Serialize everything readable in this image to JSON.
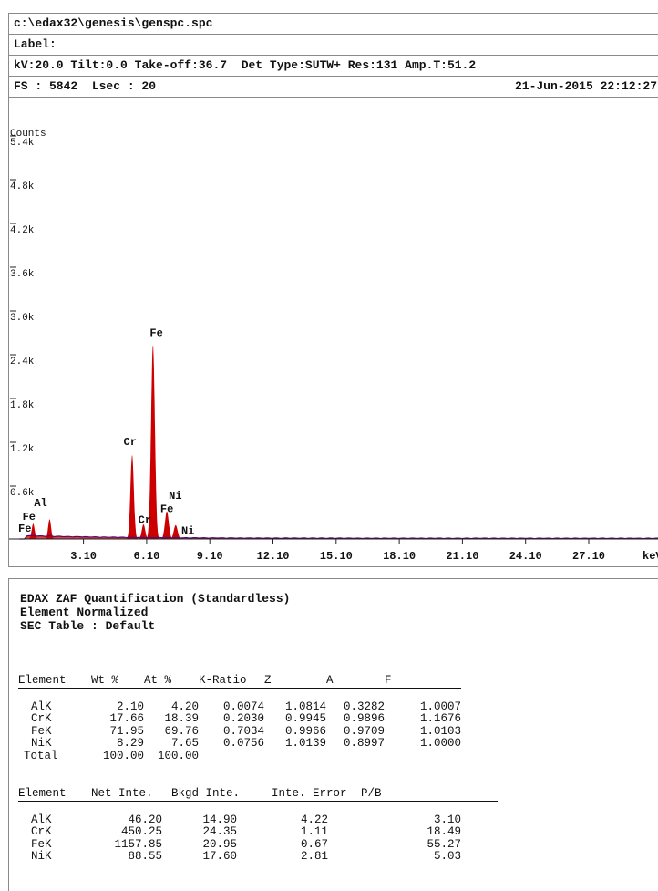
{
  "header": {
    "path": "c:\\edax32\\genesis\\genspc.spc",
    "label": "Label:",
    "params": {
      "kv": "kV:20.0",
      "tilt": "Tilt:0.0",
      "takeoff": "Take-off:36.7",
      "det": "Det Type:SUTW+",
      "res": "Res:131",
      "amp": "Amp.T:51.2"
    },
    "fs": "FS : 5842",
    "lsec": "Lsec : 20",
    "datetime": "21-Jun-2015 22:12:27"
  },
  "chart_data": {
    "type": "area",
    "ylabel": "Counts",
    "xlabel": "keV",
    "xlim": [
      0,
      30
    ],
    "ylim": [
      0,
      5842
    ],
    "y_ticks": [
      {
        "value": 600,
        "label": "0.6k"
      },
      {
        "value": 1200,
        "label": "1.2k"
      },
      {
        "value": 1800,
        "label": "1.8k"
      },
      {
        "value": 2400,
        "label": "2.4k"
      },
      {
        "value": 3000,
        "label": "3.0k"
      },
      {
        "value": 3600,
        "label": "3.6k"
      },
      {
        "value": 4200,
        "label": "4.2k"
      },
      {
        "value": 4800,
        "label": "4.8k"
      },
      {
        "value": 5400,
        "label": "5.4k"
      }
    ],
    "x_ticks": [
      {
        "value": 3.1,
        "label": "3.10"
      },
      {
        "value": 6.1,
        "label": "6.10"
      },
      {
        "value": 9.1,
        "label": "9.10"
      },
      {
        "value": 12.1,
        "label": "12.10"
      },
      {
        "value": 15.1,
        "label": "15.10"
      },
      {
        "value": 18.1,
        "label": "18.10"
      },
      {
        "value": 21.1,
        "label": "21.10"
      },
      {
        "value": 24.1,
        "label": "24.10"
      },
      {
        "value": 27.1,
        "label": "27.10"
      }
    ],
    "peaks": [
      {
        "x": 0.71,
        "y": 210,
        "w": 0.07
      },
      {
        "x": 1.49,
        "y": 270,
        "w": 0.07
      },
      {
        "x": 5.41,
        "y": 1150,
        "w": 0.08
      },
      {
        "x": 5.95,
        "y": 200,
        "w": 0.08
      },
      {
        "x": 6.4,
        "y": 2660,
        "w": 0.09
      },
      {
        "x": 7.06,
        "y": 380,
        "w": 0.09
      },
      {
        "x": 7.48,
        "y": 190,
        "w": 0.09
      }
    ],
    "peak_labels": [
      {
        "text": "Fe",
        "x": 0.2,
        "y": 265
      },
      {
        "text": "Fe",
        "x": 0.0,
        "y": 100
      },
      {
        "text": "Al",
        "x": 0.75,
        "y": 450
      },
      {
        "text": "Cr",
        "x": 5.0,
        "y": 1290
      },
      {
        "text": "Cr",
        "x": 5.7,
        "y": 220
      },
      {
        "text": "Fe",
        "x": 6.25,
        "y": 2780
      },
      {
        "text": "Ni",
        "x": 7.15,
        "y": 550
      },
      {
        "text": "Fe",
        "x": 6.75,
        "y": 370
      },
      {
        "text": "Ni",
        "x": 7.75,
        "y": 70
      }
    ],
    "fill_color": "#cc0000",
    "baseline_color": "#5a0a6a"
  },
  "quant": {
    "title": "EDAX ZAF Quantification (Standardless)",
    "subtitle": "Element Normalized",
    "table_name": "SEC Table : Default",
    "table1": {
      "headers": [
        "Element",
        "Wt %",
        "At %",
        "K-Ratio",
        "Z",
        "A",
        "F"
      ],
      "rows": [
        [
          "AlK",
          "2.10",
          "4.20",
          "0.0074",
          "1.0814",
          "0.3282",
          "1.0007"
        ],
        [
          "CrK",
          "17.66",
          "18.39",
          "0.2030",
          "0.9945",
          "0.9896",
          "1.1676"
        ],
        [
          "FeK",
          "71.95",
          "69.76",
          "0.7034",
          "0.9966",
          "0.9709",
          "1.0103"
        ],
        [
          "NiK",
          "8.29",
          "7.65",
          "0.0756",
          "1.0139",
          "0.8997",
          "1.0000"
        ]
      ],
      "total": [
        "Total",
        "100.00",
        "100.00"
      ]
    },
    "table2": {
      "headers": [
        "Element",
        "Net Inte.",
        "Bkgd Inte.",
        "Inte. Error",
        "P/B"
      ],
      "rows": [
        [
          "AlK",
          "46.20",
          "14.90",
          "4.22",
          "3.10"
        ],
        [
          "CrK",
          "450.25",
          "24.35",
          "1.11",
          "18.49"
        ],
        [
          "FeK",
          "1157.85",
          "20.95",
          "0.67",
          "55.27"
        ],
        [
          "NiK",
          "88.55",
          "17.60",
          "2.81",
          "5.03"
        ]
      ]
    }
  }
}
